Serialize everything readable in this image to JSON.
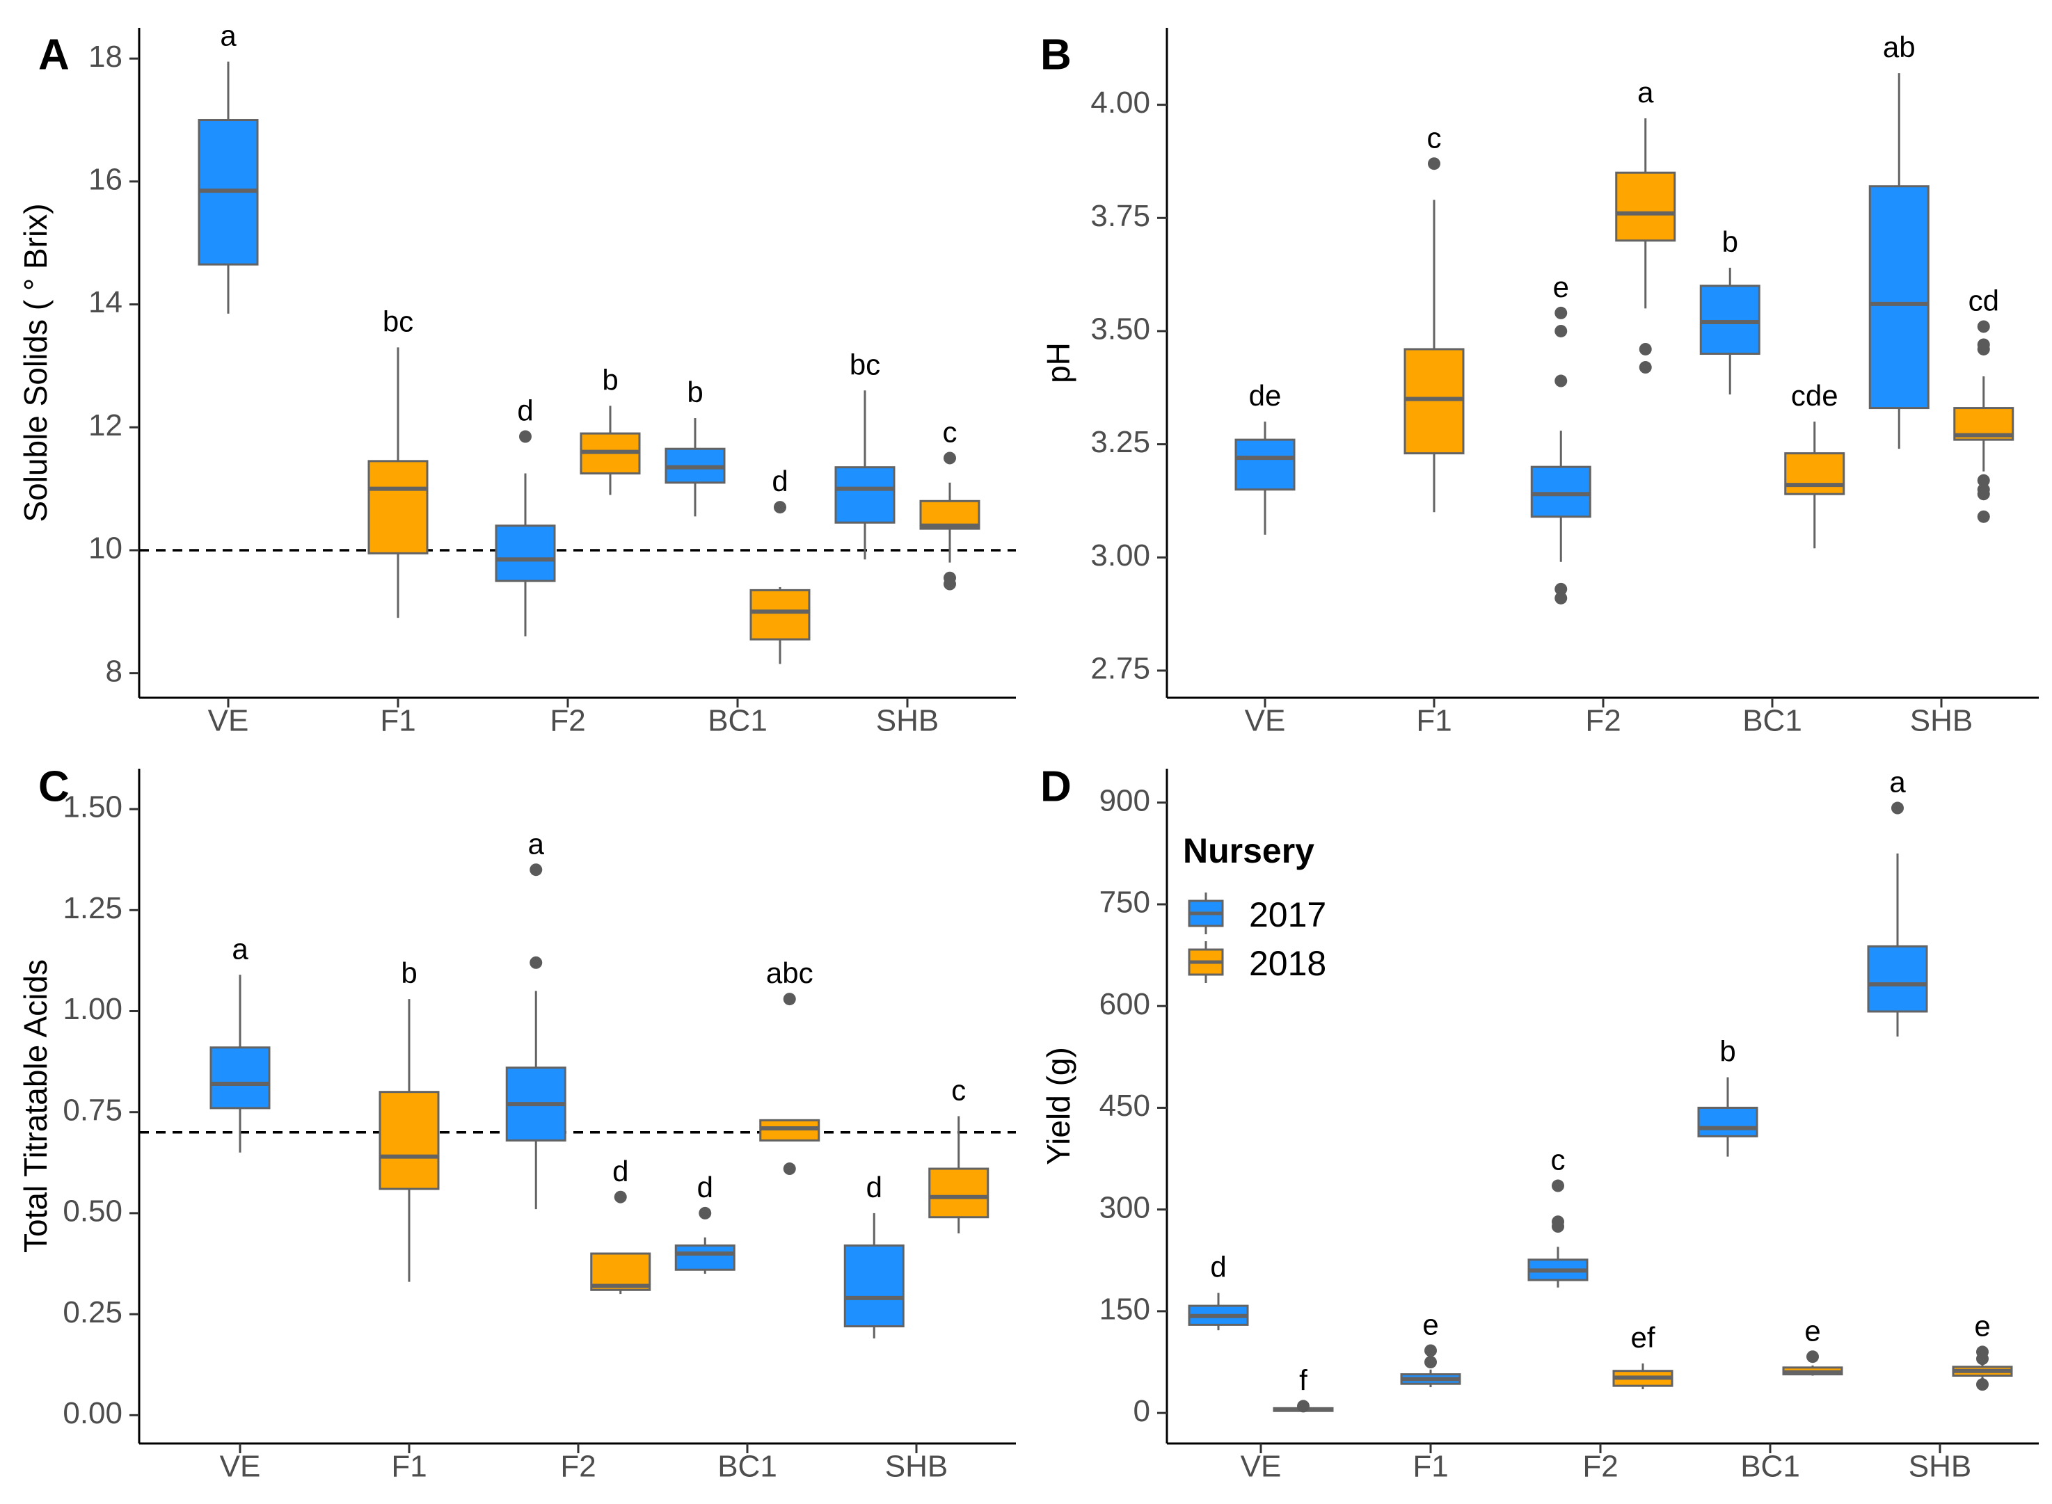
{
  "legend": {
    "title": "Nursery",
    "entries": [
      {
        "name": "2017",
        "color": "#1e90ff"
      },
      {
        "name": "2018",
        "color": "#ffa500"
      }
    ]
  },
  "style": {
    "box_outline": "#636363",
    "outlier_color": "#5a5a5a",
    "axis_color": "#000000"
  },
  "chart_data": [
    {
      "type": "box",
      "panel": "A",
      "title": "",
      "xlabel": "",
      "ylabel": "Soluble Solids ( ° Brix)",
      "categories": [
        "VE",
        "F1",
        "F2",
        "BC1",
        "SHB"
      ],
      "ylim": [
        7.6,
        18.5
      ],
      "yticks": [
        8,
        10,
        12,
        14,
        16,
        18
      ],
      "ytick_labels": [
        "8",
        "10",
        "12",
        "14",
        "16",
        "18"
      ],
      "reference_line": 10,
      "boxes": [
        {
          "category": "VE",
          "series": "2017",
          "pos": 0,
          "min": 13.85,
          "q1": 14.65,
          "median": 15.85,
          "q3": 17.0,
          "max": 17.95,
          "outliers": [],
          "letter": "a"
        },
        {
          "category": "F1",
          "series": "2018",
          "pos": 1,
          "min": 8.9,
          "q1": 9.95,
          "median": 11.0,
          "q3": 11.45,
          "max": 13.3,
          "outliers": [],
          "letter": "bc"
        },
        {
          "category": "F2",
          "series": "2017",
          "pos": 1.75,
          "min": 8.6,
          "q1": 9.5,
          "median": 9.85,
          "q3": 10.4,
          "max": 11.25,
          "outliers": [
            11.85
          ],
          "letter": "d"
        },
        {
          "category": "F2",
          "series": "2018",
          "pos": 2.25,
          "min": 10.9,
          "q1": 11.25,
          "median": 11.6,
          "q3": 11.9,
          "max": 12.35,
          "outliers": [],
          "letter": "b"
        },
        {
          "category": "BC1",
          "series": "2017",
          "pos": 2.75,
          "min": 10.55,
          "q1": 11.1,
          "median": 11.35,
          "q3": 11.65,
          "max": 12.15,
          "outliers": [],
          "letter": "b"
        },
        {
          "category": "BC1",
          "series": "2018",
          "pos": 3.25,
          "min": 8.15,
          "q1": 8.55,
          "median": 9.0,
          "q3": 9.35,
          "max": 9.4,
          "outliers": [
            10.7
          ],
          "letter": "d"
        },
        {
          "category": "SHB",
          "series": "2017",
          "pos": 3.75,
          "min": 9.85,
          "q1": 10.45,
          "median": 11.0,
          "q3": 11.35,
          "max": 12.6,
          "outliers": [],
          "letter": "bc"
        },
        {
          "category": "SHB",
          "series": "2018",
          "pos": 4.25,
          "min": 9.8,
          "q1": 10.35,
          "median": 10.4,
          "q3": 10.8,
          "max": 11.1,
          "outliers": [
            11.5,
            9.55,
            9.45
          ],
          "letter": "c"
        }
      ]
    },
    {
      "type": "box",
      "panel": "B",
      "title": "",
      "xlabel": "",
      "ylabel": "pH",
      "categories": [
        "VE",
        "F1",
        "F2",
        "BC1",
        "SHB"
      ],
      "ylim": [
        2.69,
        4.17
      ],
      "yticks": [
        2.75,
        3.0,
        3.25,
        3.5,
        3.75,
        4.0
      ],
      "ytick_labels": [
        "2.75",
        "3.00",
        "3.25",
        "3.50",
        "3.75",
        "4.00"
      ],
      "boxes": [
        {
          "category": "VE",
          "series": "2017",
          "pos": 0,
          "min": 3.05,
          "q1": 3.15,
          "median": 3.22,
          "q3": 3.26,
          "max": 3.3,
          "outliers": [],
          "letter": "de"
        },
        {
          "category": "F1",
          "series": "2018",
          "pos": 1,
          "min": 3.1,
          "q1": 3.23,
          "median": 3.35,
          "q3": 3.46,
          "max": 3.79,
          "outliers": [
            3.87
          ],
          "letter": "c"
        },
        {
          "category": "F2",
          "series": "2017",
          "pos": 1.75,
          "min": 2.99,
          "q1": 3.09,
          "median": 3.14,
          "q3": 3.2,
          "max": 3.28,
          "outliers": [
            3.54,
            3.5,
            3.39,
            2.93,
            2.91
          ],
          "letter": "e"
        },
        {
          "category": "F2",
          "series": "2018",
          "pos": 2.25,
          "min": 3.55,
          "q1": 3.7,
          "median": 3.76,
          "q3": 3.85,
          "max": 3.97,
          "outliers": [
            3.46,
            3.42
          ],
          "letter": "a"
        },
        {
          "category": "BC1",
          "series": "2017",
          "pos": 2.75,
          "min": 3.36,
          "q1": 3.45,
          "median": 3.52,
          "q3": 3.6,
          "max": 3.64,
          "outliers": [],
          "letter": "b"
        },
        {
          "category": "BC1",
          "series": "2018",
          "pos": 3.25,
          "min": 3.02,
          "q1": 3.14,
          "median": 3.16,
          "q3": 3.23,
          "max": 3.3,
          "outliers": [],
          "letter": "cde"
        },
        {
          "category": "SHB",
          "series": "2017",
          "pos": 3.75,
          "min": 3.24,
          "q1": 3.33,
          "median": 3.56,
          "q3": 3.82,
          "max": 4.07,
          "outliers": [],
          "letter": "ab"
        },
        {
          "category": "SHB",
          "series": "2018",
          "pos": 4.25,
          "min": 3.19,
          "q1": 3.26,
          "median": 3.27,
          "q3": 3.33,
          "max": 3.4,
          "outliers": [
            3.51,
            3.47,
            3.46,
            3.17,
            3.15,
            3.14,
            3.09
          ],
          "letter": "cd"
        }
      ]
    },
    {
      "type": "box",
      "panel": "C",
      "title": "",
      "xlabel": "",
      "ylabel": "Total Titratable Acids",
      "categories": [
        "VE",
        "F1",
        "F2",
        "BC1",
        "SHB"
      ],
      "ylim": [
        -0.07,
        1.6
      ],
      "yticks": [
        0.0,
        0.25,
        0.5,
        0.75,
        1.0,
        1.25,
        1.5
      ],
      "ytick_labels": [
        "0.00",
        "0.25",
        "0.50",
        "0.75",
        "1.00",
        "1.25",
        "1.50"
      ],
      "reference_line": 0.7,
      "boxes": [
        {
          "category": "VE",
          "series": "2017",
          "pos": 0,
          "min": 0.65,
          "q1": 0.76,
          "median": 0.82,
          "q3": 0.91,
          "max": 1.09,
          "outliers": [],
          "letter": "a"
        },
        {
          "category": "F1",
          "series": "2018",
          "pos": 1,
          "min": 0.33,
          "q1": 0.56,
          "median": 0.64,
          "q3": 0.8,
          "max": 1.03,
          "outliers": [],
          "letter": "b"
        },
        {
          "category": "F2",
          "series": "2017",
          "pos": 1.75,
          "min": 0.51,
          "q1": 0.68,
          "median": 0.77,
          "q3": 0.86,
          "max": 1.05,
          "outliers": [
            1.35,
            1.12
          ],
          "letter": "a"
        },
        {
          "category": "F2",
          "series": "2018",
          "pos": 2.25,
          "min": 0.3,
          "q1": 0.31,
          "median": 0.32,
          "q3": 0.4,
          "max": 0.4,
          "outliers": [
            0.54
          ],
          "letter": "d"
        },
        {
          "category": "BC1",
          "series": "2017",
          "pos": 2.75,
          "min": 0.35,
          "q1": 0.36,
          "median": 0.4,
          "q3": 0.42,
          "max": 0.44,
          "outliers": [
            0.5
          ],
          "letter": "d"
        },
        {
          "category": "BC1",
          "series": "2018",
          "pos": 3.25,
          "min": 0.68,
          "q1": 0.68,
          "median": 0.71,
          "q3": 0.73,
          "max": 0.73,
          "outliers": [
            1.03,
            0.61
          ],
          "letter": "abc"
        },
        {
          "category": "SHB",
          "series": "2017",
          "pos": 3.75,
          "min": 0.19,
          "q1": 0.22,
          "median": 0.29,
          "q3": 0.42,
          "max": 0.5,
          "outliers": [],
          "letter": "d"
        },
        {
          "category": "SHB",
          "series": "2018",
          "pos": 4.25,
          "min": 0.45,
          "q1": 0.49,
          "median": 0.54,
          "q3": 0.61,
          "max": 0.74,
          "outliers": [],
          "letter": "c"
        }
      ]
    },
    {
      "type": "box",
      "panel": "D",
      "title": "",
      "xlabel": "",
      "ylabel": "Yield (g)",
      "categories": [
        "VE",
        "F1",
        "F2",
        "BC1",
        "SHB"
      ],
      "ylim": [
        -45,
        950
      ],
      "yticks": [
        0,
        150,
        300,
        450,
        600,
        750,
        900
      ],
      "ytick_labels": [
        "0",
        "150",
        "300",
        "450",
        "600",
        "750",
        "900"
      ],
      "legend_position": "top-left",
      "boxes": [
        {
          "category": "VE",
          "series": "2017",
          "pos": -0.25,
          "min": 122,
          "q1": 130,
          "median": 143,
          "q3": 158,
          "max": 177,
          "outliers": [],
          "letter": "d"
        },
        {
          "category": "VE",
          "series": "2018",
          "pos": 0.25,
          "min": 2,
          "q1": 3,
          "median": 5,
          "q3": 7,
          "max": 9,
          "outliers": [
            10
          ],
          "letter": "f"
        },
        {
          "category": "F1",
          "series": "2017",
          "pos": 1,
          "min": 38,
          "q1": 43,
          "median": 50,
          "q3": 57,
          "max": 64,
          "outliers": [
            92,
            75
          ],
          "letter": "e"
        },
        {
          "category": "F2",
          "series": "2017",
          "pos": 1.75,
          "min": 185,
          "q1": 196,
          "median": 210,
          "q3": 226,
          "max": 245,
          "outliers": [
            335,
            282,
            275
          ],
          "letter": "c"
        },
        {
          "category": "F2",
          "series": "2018",
          "pos": 2.25,
          "min": 35,
          "q1": 40,
          "median": 52,
          "q3": 62,
          "max": 73,
          "outliers": [],
          "letter": "ef"
        },
        {
          "category": "BC1",
          "series": "2017",
          "pos": 2.75,
          "min": 378,
          "q1": 408,
          "median": 420,
          "q3": 450,
          "max": 495,
          "outliers": [],
          "letter": "b"
        },
        {
          "category": "BC1",
          "series": "2018",
          "pos": 3.25,
          "min": 55,
          "q1": 57,
          "median": 60,
          "q3": 67,
          "max": 70,
          "outliers": [
            83
          ],
          "letter": "e"
        },
        {
          "category": "SHB",
          "series": "2017",
          "pos": 3.75,
          "min": 555,
          "q1": 592,
          "median": 632,
          "q3": 688,
          "max": 825,
          "outliers": [
            892
          ],
          "letter": "a"
        },
        {
          "category": "SHB",
          "series": "2018",
          "pos": 4.25,
          "min": 45,
          "q1": 55,
          "median": 62,
          "q3": 68,
          "max": 72,
          "outliers": [
            90,
            80,
            42
          ],
          "letter": "e"
        }
      ]
    }
  ]
}
